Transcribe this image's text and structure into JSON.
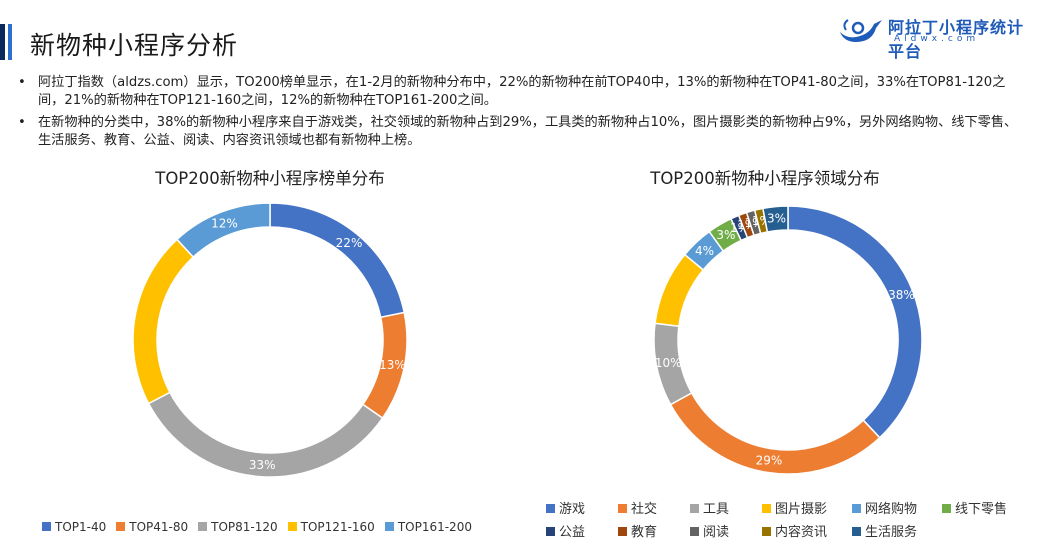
{
  "header": {
    "title": "新物种小程序分析",
    "logo_text": "阿拉丁小程序统计平台",
    "logo_sub": "Aldwx.com"
  },
  "bullets": [
    "阿拉丁指数（aldzs.com）显示，TO200榜单显示，在1-2月的新物种分布中，22%的新物种在前TOP40中，13%的新物种在TOP41-80之间，33%在TOP81-120之间，21%的新物种在TOP121-160之间，12%的新物种在TOP161-200之间。",
    "在新物种的分类中，38%的新物种小程序来自于游戏类，社交领域的新物种占到29%，工具类的新物种占10%，图片摄影类的新物种占9%，另外网络购物、线下零售、生活服务、教育、公益、阅读、内容资讯领域也都有新物种上榜。"
  ],
  "colors": {
    "blue": "#4472c4",
    "orange": "#ed7d31",
    "gray": "#a5a5a5",
    "yellow": "#ffc000",
    "lightblue": "#5b9bd5",
    "green": "#70ad47",
    "navy": "#264478",
    "darkred": "#9e480e",
    "darkgray": "#636363",
    "olive": "#997300"
  },
  "chart_data": [
    {
      "type": "pie",
      "title": "TOP200新物种小程序榜单分布",
      "categories": [
        "TOP1-40",
        "TOP41-80",
        "TOP81-120",
        "TOP121-160",
        "TOP161-200"
      ],
      "values": [
        22,
        13,
        33,
        21,
        12
      ],
      "labels": [
        "22%",
        "13%",
        "33%",
        "",
        "12%"
      ],
      "colors": [
        "#4472c4",
        "#ed7d31",
        "#a5a5a5",
        "#ffc000",
        "#5b9bd5"
      ],
      "legend": "bottom"
    },
    {
      "type": "pie",
      "title": "TOP200新物种小程序领域分布",
      "categories": [
        "游戏",
        "社交",
        "工具",
        "图片摄影",
        "网络购物",
        "线下零售",
        "公益",
        "教育",
        "阅读",
        "内容资讯",
        "生活服务"
      ],
      "values": [
        38,
        29,
        10,
        9,
        4,
        3,
        1,
        1,
        1,
        1,
        3
      ],
      "labels": [
        "38%",
        "29%",
        "10%",
        "",
        "4%",
        "3%",
        "1%",
        "1%",
        "1%",
        "1%",
        "3%"
      ],
      "colors": [
        "#4472c4",
        "#ed7d31",
        "#a5a5a5",
        "#ffc000",
        "#5b9bd5",
        "#70ad47",
        "#264478",
        "#9e480e",
        "#636363",
        "#997300",
        "#255e91"
      ],
      "legend": "bottom"
    }
  ]
}
